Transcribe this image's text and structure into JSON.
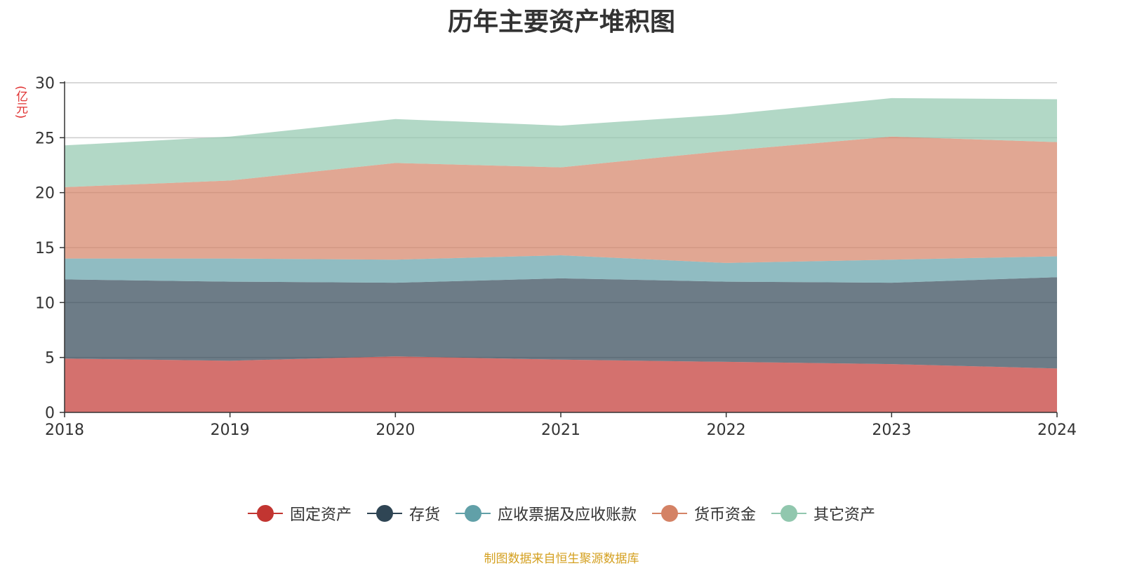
{
  "chart_data": {
    "type": "area",
    "stacked": true,
    "title": "历年主要资产堆积图",
    "ylabel": "(亿元)",
    "x": [
      "2018",
      "2019",
      "2020",
      "2021",
      "2022",
      "2023",
      "2024"
    ],
    "yticks": [
      "0",
      "5",
      "10",
      "15",
      "20",
      "25",
      "30"
    ],
    "ylim": [
      0,
      30
    ],
    "grid": true,
    "legend_position": "bottom",
    "series": [
      {
        "name": "固定资产",
        "color": "#c23531",
        "values": [
          4.9,
          4.7,
          5.1,
          4.8,
          4.6,
          4.4,
          4.0
        ]
      },
      {
        "name": "存货",
        "color": "#2f4554",
        "values": [
          7.2,
          7.2,
          6.7,
          7.4,
          7.3,
          7.4,
          8.3
        ]
      },
      {
        "name": "应收票据及应收账款",
        "color": "#61a0a8",
        "values": [
          1.9,
          2.1,
          2.1,
          2.1,
          1.7,
          2.1,
          1.9
        ]
      },
      {
        "name": "货币资金",
        "color": "#d48265",
        "values": [
          6.5,
          7.1,
          8.8,
          8.0,
          10.2,
          11.2,
          10.4
        ]
      },
      {
        "name": "其它资产",
        "color": "#91c7ae",
        "values": [
          3.8,
          4.0,
          4.0,
          3.8,
          3.3,
          3.5,
          3.9
        ]
      }
    ]
  },
  "source_note": "制图数据来自恒生聚源数据库"
}
